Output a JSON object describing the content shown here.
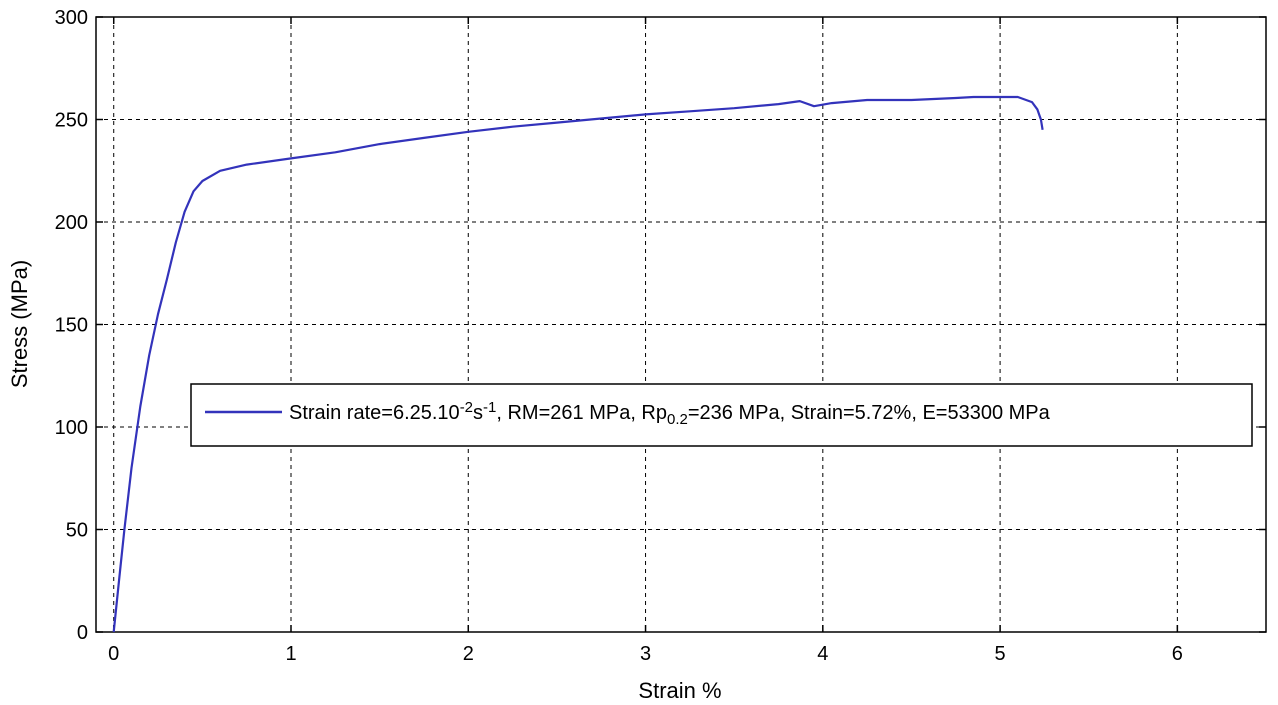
{
  "chart_data": {
    "type": "line",
    "xlabel": "Strain %",
    "ylabel": "Stress (MPa)",
    "xlim": [
      -0.1,
      6.5
    ],
    "ylim": [
      0,
      300
    ],
    "xticks": [
      "0",
      "1",
      "2",
      "3",
      "4",
      "5",
      "6"
    ],
    "yticks": [
      "0",
      "50",
      "100",
      "150",
      "200",
      "250",
      "300"
    ],
    "grid": true,
    "legend": {
      "placement": "center-right",
      "parts": [
        {
          "t": "Strain rate=6.25.10",
          "s": "n"
        },
        {
          "t": "-2",
          "s": "sup"
        },
        {
          "t": "s",
          "s": "n"
        },
        {
          "t": "-1",
          "s": "sup"
        },
        {
          "t": ", RM=261 MPa, Rp",
          "s": "n"
        },
        {
          "t": "0.2",
          "s": "sub"
        },
        {
          "t": "=236 MPa, Strain=5.72%, E=53300 MPa",
          "s": "n"
        }
      ]
    },
    "series": [
      {
        "color": "#3333bb",
        "points": [
          [
            0,
            0
          ],
          [
            0.03,
            25
          ],
          [
            0.06,
            50
          ],
          [
            0.1,
            80
          ],
          [
            0.15,
            110
          ],
          [
            0.2,
            135
          ],
          [
            0.25,
            155
          ],
          [
            0.3,
            172
          ],
          [
            0.35,
            190
          ],
          [
            0.4,
            205
          ],
          [
            0.45,
            215
          ],
          [
            0.5,
            220
          ],
          [
            0.6,
            225
          ],
          [
            0.75,
            228
          ],
          [
            1.0,
            231
          ],
          [
            1.25,
            234
          ],
          [
            1.5,
            238
          ],
          [
            1.75,
            241
          ],
          [
            2.0,
            244
          ],
          [
            2.25,
            246.5
          ],
          [
            2.5,
            248.5
          ],
          [
            2.75,
            250.5
          ],
          [
            3.0,
            252.5
          ],
          [
            3.25,
            254
          ],
          [
            3.5,
            255.5
          ],
          [
            3.75,
            257.5
          ],
          [
            3.87,
            259
          ],
          [
            3.95,
            256.5
          ],
          [
            4.05,
            258
          ],
          [
            4.25,
            259.5
          ],
          [
            4.5,
            259.5
          ],
          [
            4.75,
            260.5
          ],
          [
            4.85,
            261
          ],
          [
            5.0,
            261
          ],
          [
            5.1,
            261
          ],
          [
            5.18,
            258.5
          ],
          [
            5.21,
            255
          ],
          [
            5.23,
            250
          ],
          [
            5.24,
            245
          ]
        ]
      }
    ]
  }
}
